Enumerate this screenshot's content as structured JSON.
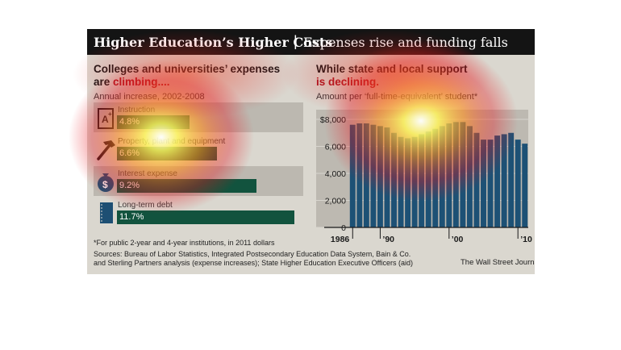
{
  "header": {
    "title": "Higher Education’s Higher Costs",
    "separator": "|",
    "subtitle": "Expenses rise and funding falls"
  },
  "left_panel": {
    "title_line1": "Colleges and universities’ expenses",
    "title_line2_prefix": "are ",
    "title_line2_emph": "climbing....",
    "subtitle": "Annual increase, 2002-2008"
  },
  "right_panel": {
    "title_line1": "While state and local support",
    "title_line2": "is declining.",
    "subtitle": "Amount per ‘full-time-equivalent’ student*"
  },
  "icons": [
    "grade-paper-icon",
    "hammer-icon",
    "money-bag-icon",
    "ledger-book-icon"
  ],
  "footnote": "*For public 2-year and 4-year institutions, in 2011 dollars",
  "sources_line1": "Sources: Bureau of Labor Statistics, Integrated Postsecondary Education Data System, Bain & Co.",
  "sources_line2": "and Sterling Partners analysis (expense increases); State Higher Education Executive Officers (aid)",
  "credit": "The Wall Street Journal",
  "colors": {
    "header_bg": "#141414",
    "panel_bg": "#dad7cf",
    "accent_red": "#a8121e",
    "expense_bar": "#12533e",
    "aid_bar": "#1d5175"
  },
  "chart_data": [
    {
      "type": "bar",
      "orientation": "horizontal",
      "title": "Colleges and universities’ expenses are climbing....",
      "subtitle": "Annual increase, 2002-2008",
      "categories": [
        "Instruction",
        "Property, plant and equipment",
        "Interest expense",
        "Long-term debt"
      ],
      "values": [
        4.8,
        6.6,
        9.2,
        11.7
      ],
      "value_labels": [
        "4.8%",
        "6.6%",
        "9.2%",
        "11.7%"
      ],
      "unit": "%",
      "xlim": [
        0,
        12
      ]
    },
    {
      "type": "bar",
      "title": "While state and local support is declining.",
      "subtitle": "Amount per ‘full-time-equivalent’ student*",
      "x": [
        1986,
        1987,
        1988,
        1989,
        1990,
        1991,
        1992,
        1993,
        1994,
        1995,
        1996,
        1997,
        1998,
        1999,
        2000,
        2001,
        2002,
        2003,
        2004,
        2005,
        2006,
        2007,
        2008,
        2009,
        2010,
        2011
      ],
      "values": [
        7600,
        7700,
        7700,
        7600,
        7500,
        7400,
        7000,
        6700,
        6600,
        6700,
        6900,
        7100,
        7300,
        7500,
        7700,
        7800,
        7800,
        7500,
        7000,
        6500,
        6500,
        6800,
        6900,
        7000,
        6500,
        6200
      ],
      "ylim": [
        0,
        8000
      ],
      "y_ticks": [
        0,
        2000,
        4000,
        6000,
        8000
      ],
      "y_tick_labels": [
        "0",
        "2,000",
        "4,000",
        "6,000",
        "$8,000"
      ],
      "x_tick_labels": [
        {
          "year": 1986,
          "label": "1986"
        },
        {
          "year": 1990,
          "label": "’90"
        },
        {
          "year": 2000,
          "label": "’00"
        },
        {
          "year": 2010,
          "label": "’10"
        }
      ],
      "grid": true
    }
  ]
}
